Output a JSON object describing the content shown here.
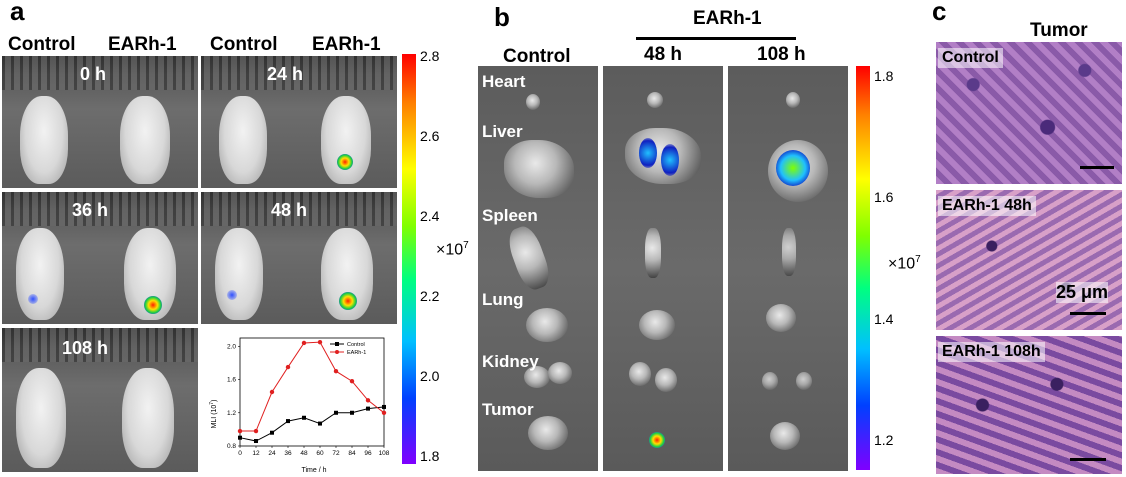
{
  "panel_a": {
    "label": "a",
    "header_control_1": "Control",
    "header_earh_1": "EARh-1",
    "header_control_2": "Control",
    "header_earh_2": "EARh-1",
    "times": [
      "0 h",
      "24 h",
      "36 h",
      "48 h",
      "108 h"
    ],
    "colorbar": {
      "ticks": [
        "2.8",
        "2.6",
        "2.4",
        "2.2",
        "2.0",
        "1.8"
      ],
      "unit": "×10",
      "exp": "7"
    }
  },
  "panel_b": {
    "label": "b",
    "group": "EARh-1",
    "col_control": "Control",
    "col_48": "48 h",
    "col_108": "108 h",
    "organs": [
      "Heart",
      "Liver",
      "Spleen",
      "Lung",
      "Kidney",
      "Tumor"
    ],
    "colorbar": {
      "ticks": [
        "1.8",
        "1.6",
        "1.4",
        "1.2"
      ],
      "unit": "×10",
      "exp": "7"
    }
  },
  "panel_c": {
    "label": "c",
    "title": "Tumor",
    "rows": [
      "Control",
      "EARh-1 48h",
      "EARh-1 108h"
    ],
    "scale_label": "25 μm"
  },
  "chart_data": {
    "type": "line",
    "xlabel": "Time / h",
    "ylabel": "MLI (10",
    "ylabel_exp": "7",
    "ylabel_tail": ")",
    "x": [
      0,
      12,
      24,
      36,
      48,
      60,
      72,
      84,
      96,
      108
    ],
    "xlim": [
      0,
      108
    ],
    "ylim": [
      0.8,
      2.1
    ],
    "yticks": [
      0.8,
      1.2,
      1.6,
      2.0
    ],
    "series": [
      {
        "name": "Control",
        "color": "#000000",
        "marker": "square",
        "values": [
          0.9,
          0.86,
          0.96,
          1.1,
          1.14,
          1.07,
          1.2,
          1.2,
          1.25,
          1.27
        ]
      },
      {
        "name": "EARh-1",
        "color": "#e02020",
        "marker": "circle",
        "values": [
          0.98,
          0.98,
          1.45,
          1.75,
          2.04,
          2.05,
          1.7,
          1.58,
          1.35,
          1.2
        ]
      }
    ],
    "legend": "top-right"
  }
}
